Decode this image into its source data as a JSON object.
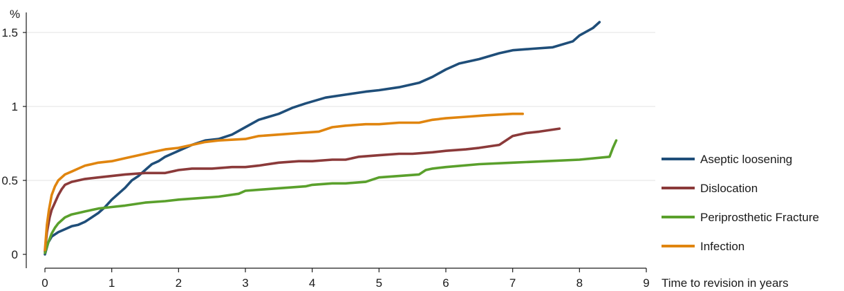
{
  "chart_data": {
    "type": "line",
    "title": "",
    "xlabel": "Time to revision in years",
    "ylabel": "%",
    "xlim": [
      0,
      9
    ],
    "ylim": [
      0,
      1.6
    ],
    "x_ticks": [
      "0",
      "1",
      "2",
      "3",
      "4",
      "5",
      "6",
      "7",
      "8",
      "9"
    ],
    "y_ticks": [
      {
        "value": 0,
        "label": "0"
      },
      {
        "value": 0.5,
        "label": "0.5"
      },
      {
        "value": 1,
        "label": "1"
      },
      {
        "value": 1.5,
        "label": "1.5"
      }
    ],
    "grid": "horizontal",
    "legend_position": "right",
    "series": [
      {
        "name": "Aseptic loosening",
        "color": "#1f4e79",
        "points": [
          [
            0.0,
            0.0
          ],
          [
            0.05,
            0.08
          ],
          [
            0.1,
            0.12
          ],
          [
            0.2,
            0.15
          ],
          [
            0.3,
            0.17
          ],
          [
            0.4,
            0.19
          ],
          [
            0.5,
            0.2
          ],
          [
            0.6,
            0.22
          ],
          [
            0.7,
            0.25
          ],
          [
            0.8,
            0.28
          ],
          [
            0.9,
            0.32
          ],
          [
            1.0,
            0.37
          ],
          [
            1.1,
            0.41
          ],
          [
            1.2,
            0.45
          ],
          [
            1.3,
            0.5
          ],
          [
            1.4,
            0.53
          ],
          [
            1.5,
            0.57
          ],
          [
            1.6,
            0.61
          ],
          [
            1.7,
            0.63
          ],
          [
            1.8,
            0.66
          ],
          [
            1.9,
            0.68
          ],
          [
            2.0,
            0.7
          ],
          [
            2.2,
            0.74
          ],
          [
            2.4,
            0.77
          ],
          [
            2.6,
            0.78
          ],
          [
            2.8,
            0.81
          ],
          [
            3.0,
            0.86
          ],
          [
            3.2,
            0.91
          ],
          [
            3.5,
            0.95
          ],
          [
            3.7,
            0.99
          ],
          [
            3.9,
            1.02
          ],
          [
            4.2,
            1.06
          ],
          [
            4.5,
            1.08
          ],
          [
            4.8,
            1.1
          ],
          [
            5.0,
            1.11
          ],
          [
            5.3,
            1.13
          ],
          [
            5.6,
            1.16
          ],
          [
            5.8,
            1.2
          ],
          [
            6.0,
            1.25
          ],
          [
            6.2,
            1.29
          ],
          [
            6.5,
            1.32
          ],
          [
            6.8,
            1.36
          ],
          [
            7.0,
            1.38
          ],
          [
            7.3,
            1.39
          ],
          [
            7.6,
            1.4
          ],
          [
            7.9,
            1.44
          ],
          [
            8.0,
            1.48
          ],
          [
            8.2,
            1.53
          ],
          [
            8.3,
            1.57
          ]
        ]
      },
      {
        "name": "Dislocation",
        "color": "#8b3a3a",
        "points": [
          [
            0.0,
            0.02
          ],
          [
            0.03,
            0.15
          ],
          [
            0.07,
            0.25
          ],
          [
            0.1,
            0.3
          ],
          [
            0.15,
            0.35
          ],
          [
            0.2,
            0.4
          ],
          [
            0.25,
            0.44
          ],
          [
            0.3,
            0.47
          ],
          [
            0.4,
            0.49
          ],
          [
            0.5,
            0.5
          ],
          [
            0.6,
            0.51
          ],
          [
            0.8,
            0.52
          ],
          [
            1.0,
            0.53
          ],
          [
            1.2,
            0.54
          ],
          [
            1.5,
            0.55
          ],
          [
            1.8,
            0.55
          ],
          [
            2.0,
            0.57
          ],
          [
            2.2,
            0.58
          ],
          [
            2.5,
            0.58
          ],
          [
            2.8,
            0.59
          ],
          [
            3.0,
            0.59
          ],
          [
            3.2,
            0.6
          ],
          [
            3.5,
            0.62
          ],
          [
            3.8,
            0.63
          ],
          [
            4.0,
            0.63
          ],
          [
            4.3,
            0.64
          ],
          [
            4.5,
            0.64
          ],
          [
            4.7,
            0.66
          ],
          [
            5.0,
            0.67
          ],
          [
            5.3,
            0.68
          ],
          [
            5.5,
            0.68
          ],
          [
            5.8,
            0.69
          ],
          [
            6.0,
            0.7
          ],
          [
            6.3,
            0.71
          ],
          [
            6.5,
            0.72
          ],
          [
            6.8,
            0.74
          ],
          [
            7.0,
            0.8
          ],
          [
            7.2,
            0.82
          ],
          [
            7.4,
            0.83
          ],
          [
            7.7,
            0.85
          ]
        ]
      },
      {
        "name": "Periprosthetic Fracture",
        "color": "#5aa02c",
        "points": [
          [
            0.0,
            0.01
          ],
          [
            0.05,
            0.08
          ],
          [
            0.1,
            0.14
          ],
          [
            0.15,
            0.18
          ],
          [
            0.2,
            0.21
          ],
          [
            0.3,
            0.25
          ],
          [
            0.4,
            0.27
          ],
          [
            0.5,
            0.28
          ],
          [
            0.6,
            0.29
          ],
          [
            0.7,
            0.3
          ],
          [
            0.8,
            0.31
          ],
          [
            1.0,
            0.32
          ],
          [
            1.2,
            0.33
          ],
          [
            1.5,
            0.35
          ],
          [
            1.8,
            0.36
          ],
          [
            2.0,
            0.37
          ],
          [
            2.3,
            0.38
          ],
          [
            2.6,
            0.39
          ],
          [
            2.9,
            0.41
          ],
          [
            3.0,
            0.43
          ],
          [
            3.3,
            0.44
          ],
          [
            3.6,
            0.45
          ],
          [
            3.9,
            0.46
          ],
          [
            4.0,
            0.47
          ],
          [
            4.3,
            0.48
          ],
          [
            4.5,
            0.48
          ],
          [
            4.8,
            0.49
          ],
          [
            5.0,
            0.52
          ],
          [
            5.3,
            0.53
          ],
          [
            5.6,
            0.54
          ],
          [
            5.7,
            0.57
          ],
          [
            5.8,
            0.58
          ],
          [
            6.0,
            0.59
          ],
          [
            6.5,
            0.61
          ],
          [
            7.0,
            0.62
          ],
          [
            7.5,
            0.63
          ],
          [
            8.0,
            0.64
          ],
          [
            8.45,
            0.66
          ],
          [
            8.5,
            0.72
          ],
          [
            8.55,
            0.77
          ]
        ]
      },
      {
        "name": "Infection",
        "color": "#e0850f",
        "points": [
          [
            0.0,
            0.03
          ],
          [
            0.03,
            0.2
          ],
          [
            0.06,
            0.3
          ],
          [
            0.1,
            0.4
          ],
          [
            0.15,
            0.46
          ],
          [
            0.2,
            0.5
          ],
          [
            0.3,
            0.54
          ],
          [
            0.4,
            0.56
          ],
          [
            0.5,
            0.58
          ],
          [
            0.6,
            0.6
          ],
          [
            0.7,
            0.61
          ],
          [
            0.8,
            0.62
          ],
          [
            1.0,
            0.63
          ],
          [
            1.2,
            0.65
          ],
          [
            1.4,
            0.67
          ],
          [
            1.6,
            0.69
          ],
          [
            1.8,
            0.71
          ],
          [
            2.0,
            0.72
          ],
          [
            2.2,
            0.74
          ],
          [
            2.4,
            0.76
          ],
          [
            2.6,
            0.77
          ],
          [
            3.0,
            0.78
          ],
          [
            3.2,
            0.8
          ],
          [
            3.5,
            0.81
          ],
          [
            3.8,
            0.82
          ],
          [
            4.1,
            0.83
          ],
          [
            4.3,
            0.86
          ],
          [
            4.5,
            0.87
          ],
          [
            4.8,
            0.88
          ],
          [
            5.0,
            0.88
          ],
          [
            5.3,
            0.89
          ],
          [
            5.6,
            0.89
          ],
          [
            5.8,
            0.91
          ],
          [
            6.0,
            0.92
          ],
          [
            6.3,
            0.93
          ],
          [
            6.6,
            0.94
          ],
          [
            7.0,
            0.95
          ],
          [
            7.15,
            0.95
          ]
        ]
      }
    ]
  }
}
